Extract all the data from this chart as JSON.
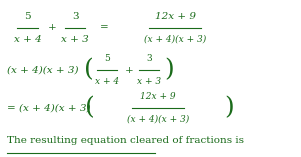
{
  "background_color": "#ffffff",
  "figsize": [
    3.01,
    1.57
  ],
  "dpi": 100,
  "text_color": "#1a6b1a",
  "line1": {
    "num1": "5",
    "den1": "x + 4",
    "plus": "+",
    "num2": "3",
    "den2": "x + 3",
    "equals": "=",
    "num3": "12x + 9",
    "den3": "(x + 4)(x + 3)"
  },
  "line2": {
    "prefix": "(x + 4)(x + 3)",
    "num1": "5",
    "den1": "x + 4",
    "plus": "+",
    "num2": "3",
    "den2": "x + 3"
  },
  "line3": {
    "prefix": "= (x + 4)(x + 3)",
    "num": "12x + 9",
    "den": "(x + 4)(x + 3)"
  },
  "line4": "The resulting equation cleared of fractions is",
  "font_size_main": 7.5,
  "font_size_small": 6.5,
  "font_family": "DejaVu Serif"
}
